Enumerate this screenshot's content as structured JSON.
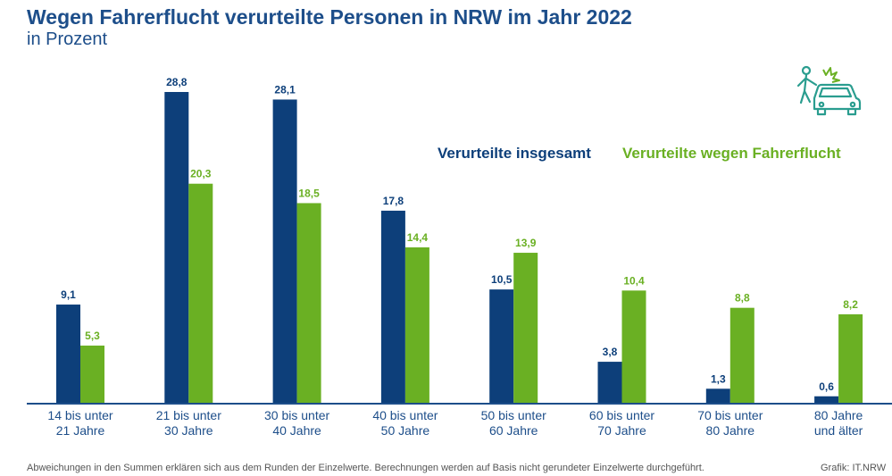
{
  "colors": {
    "total": "#0d3f7a",
    "flight": "#6ab023",
    "title": "#1d4e8a",
    "axis": "#1d4e8a"
  },
  "icon": "car-pedestrian-collision-icon",
  "footnote": "Abweichungen in den Summen erklären sich aus dem Runden der Einzelwerte. Berechnungen werden auf Basis nicht gerundeter Einzelwerte durchgeführt.",
  "source": "Grafik: IT.NRW",
  "chart_data": {
    "type": "bar",
    "title": "Wegen Fahrerflucht verurteilte Personen in NRW im Jahr 2022",
    "subtitle": "in Prozent",
    "categories": [
      [
        "14 bis unter",
        "21 Jahre"
      ],
      [
        "21 bis unter",
        "30 Jahre"
      ],
      [
        "30 bis unter",
        "40 Jahre"
      ],
      [
        "40 bis unter",
        "50 Jahre"
      ],
      [
        "50 bis unter",
        "60 Jahre"
      ],
      [
        "60 bis unter",
        "70 Jahre"
      ],
      [
        "70 bis unter",
        "80 Jahre"
      ],
      [
        "80 Jahre",
        "und älter"
      ]
    ],
    "series": [
      {
        "name": "Verurteilte insgesamt",
        "labels": [
          "9,1",
          "28,8",
          "28,1",
          "17,8",
          "10,5",
          "3,8",
          "1,3",
          "0,6"
        ],
        "values": [
          9.1,
          28.8,
          28.1,
          17.8,
          10.5,
          3.8,
          1.3,
          0.6
        ]
      },
      {
        "name": "Verurteilte wegen Fahrerflucht",
        "labels": [
          "5,3",
          "20,3",
          "18,5",
          "14,4",
          "13,9",
          "10,4",
          "8,8",
          "8,2"
        ],
        "values": [
          5.3,
          20.3,
          18.5,
          14.4,
          13.9,
          10.4,
          8.8,
          8.2
        ]
      }
    ],
    "ylim": [
      0,
      28.8
    ],
    "grid": false,
    "legend": "top-right"
  }
}
